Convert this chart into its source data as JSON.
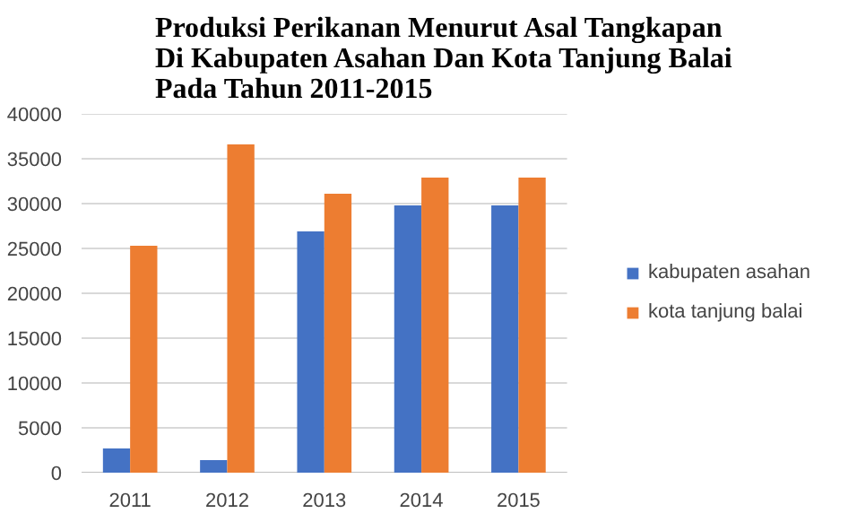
{
  "chart_data": {
    "type": "bar",
    "title": "Produksi Perikanan  Menurut Asal Tangkapan\nDi Kabupaten  Asahan  Dan Kota Tanjung  Balai\nPada Tahun  2011-2015",
    "categories": [
      "2011",
      "2012",
      "2013",
      "2014",
      "2015"
    ],
    "series": [
      {
        "name": "kabupaten asahan",
        "color": "#4472c4",
        "values": [
          2700,
          1400,
          26900,
          29800,
          29800
        ]
      },
      {
        "name": "kota tanjung balai",
        "color": "#ed7d31",
        "values": [
          25300,
          36600,
          31100,
          32900,
          32900
        ]
      }
    ],
    "ylim": [
      0,
      40000
    ],
    "yticks": [
      0,
      5000,
      10000,
      15000,
      20000,
      25000,
      30000,
      35000,
      40000
    ],
    "grid": "y",
    "legend": "right"
  }
}
